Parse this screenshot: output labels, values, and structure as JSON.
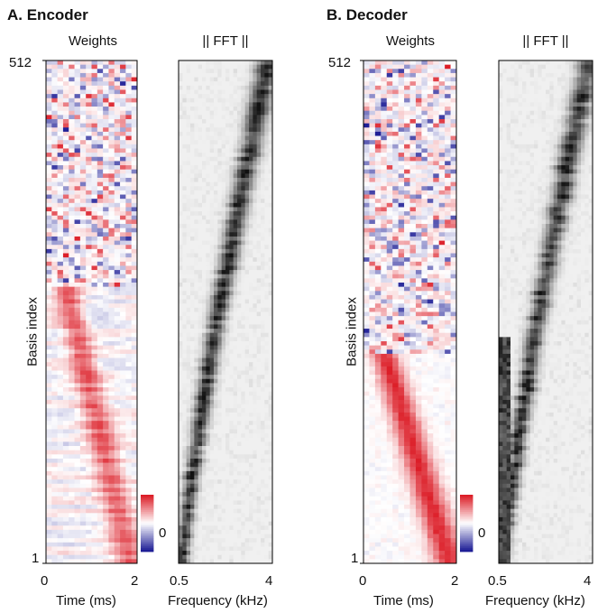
{
  "chart_data": [
    {
      "panel": "A. Encoder",
      "type": "heatmap",
      "subplots": [
        {
          "title": "Weights",
          "ylabel": "Basis index",
          "xlabel": "Time (ms)",
          "xticks": [
            "0",
            "2"
          ],
          "yticks": [
            "1",
            "512"
          ],
          "xlim": [
            0,
            2
          ],
          "ylim": [
            1,
            512
          ],
          "colormap": "red-white-blue",
          "colorbar_ticks": [
            "0"
          ],
          "pattern": "diagonal bands: low basis indices peak late in time; high indices show noisy high-frequency oscillation"
        },
        {
          "title": "|| FFT ||",
          "xlabel": "Frequency (kHz)",
          "xticks": [
            "0.5",
            "4"
          ],
          "xlim": [
            0.5,
            4
          ],
          "colormap": "gray",
          "pattern": "peak frequency rises from ~0.5 kHz at index 1 to ~4 kHz at index 512"
        }
      ]
    },
    {
      "panel": "B. Decoder",
      "type": "heatmap",
      "subplots": [
        {
          "title": "Weights",
          "ylabel": "Basis index",
          "xlabel": "Time (ms)",
          "xticks": [
            "0",
            "2"
          ],
          "yticks": [
            "1",
            "512"
          ],
          "xlim": [
            0,
            2
          ],
          "ylim": [
            1,
            512
          ],
          "colormap": "red-white-blue",
          "colorbar_ticks": [
            "0"
          ],
          "pattern": "smooth diagonal red band for low indices; noisy red/blue pattern for high indices"
        },
        {
          "title": "|| FFT ||",
          "xlabel": "Frequency (kHz)",
          "xticks": [
            "0.5",
            "4"
          ],
          "xlim": [
            0.5,
            4
          ],
          "colormap": "gray",
          "pattern": "peak frequency rises from ~0.5 kHz at index 1 to ~4 kHz at index 512"
        }
      ]
    }
  ],
  "colors": {
    "positive": "#dc1e28",
    "negative": "#1e1e96",
    "zero": "#ffffff",
    "fft_high": "#111111",
    "fft_low": "#f7f7f7"
  }
}
